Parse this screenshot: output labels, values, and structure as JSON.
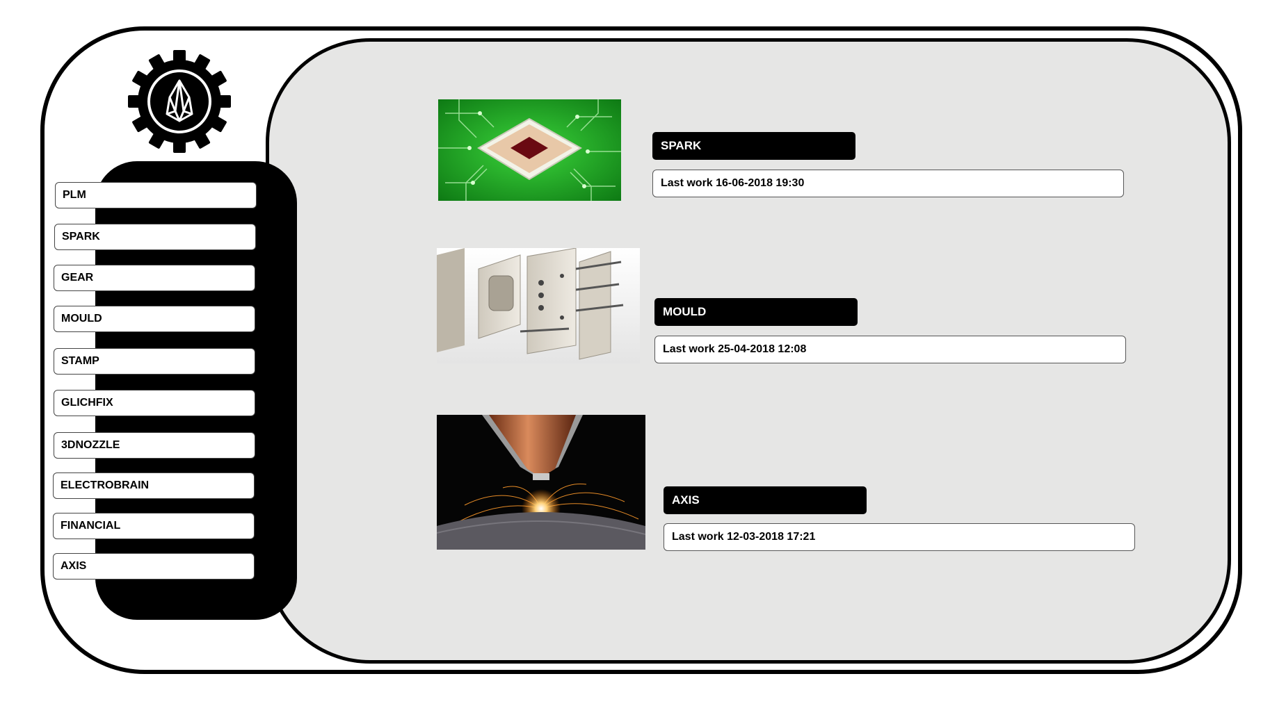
{
  "sidebar": {
    "items": [
      {
        "label": "PLM"
      },
      {
        "label": "SPARK"
      },
      {
        "label": "GEAR"
      },
      {
        "label": "MOULD"
      },
      {
        "label": "STAMP"
      },
      {
        "label": "GLICHFIX"
      },
      {
        "label": "3DNOZZLE"
      },
      {
        "label": "ELECTROBRAIN"
      },
      {
        "label": "FINANCIAL"
      },
      {
        "label": "AXIS"
      }
    ]
  },
  "main": {
    "cards": [
      {
        "title": "SPARK",
        "last_work": "Last work 16-06-2018 19:30",
        "image": "circuit-chip-photo"
      },
      {
        "title": "MOULD",
        "last_work": "Last work 25-04-2018 12:08",
        "image": "injection-mould-photo"
      },
      {
        "title": "AXIS",
        "last_work": "Last work 12-03-2018 17:21",
        "image": "laser-cutting-nozzle-photo"
      }
    ]
  },
  "colors": {
    "frame": "#000000",
    "panel_bg": "#e6e6e5",
    "button_bg": "#ffffff",
    "title_bar_bg": "#000000"
  },
  "icons": {
    "logo": "gear-eos-logo-icon"
  }
}
